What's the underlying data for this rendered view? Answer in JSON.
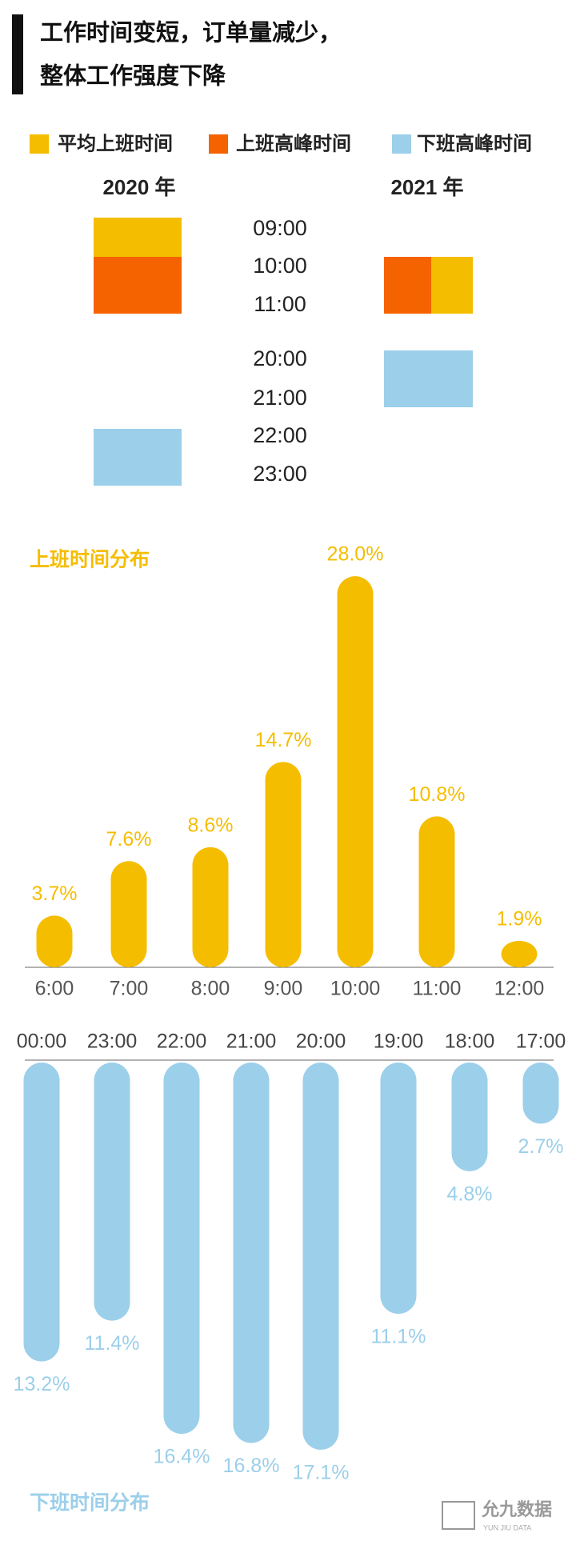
{
  "title": [
    "工作时间变短，订单量减少，",
    "整体工作强度下降"
  ],
  "legend": [
    {
      "name": "平均上班时间",
      "color": "#f5bd00"
    },
    {
      "name": "上班高峰时间",
      "color": "#f56200"
    },
    {
      "name": "下班高峰时间",
      "color": "#9ccfea"
    }
  ],
  "timeline": {
    "years": [
      "2020 年",
      "2021 年"
    ],
    "times": [
      "09:00",
      "10:00",
      "11:00",
      "20:00",
      "21:00",
      "22:00",
      "23:00"
    ]
  },
  "footer": [
    "允九数据",
    "YUN JIU DATA"
  ],
  "chart_data": [
    {
      "type": "bar",
      "title": "上班时间分布",
      "color": "#f5bd00",
      "categories": [
        "6:00",
        "7:00",
        "8:00",
        "9:00",
        "10:00",
        "11:00",
        "12:00"
      ],
      "values": [
        3.7,
        7.6,
        8.6,
        14.7,
        28.0,
        10.8,
        1.9
      ],
      "value_labels": [
        "3.7%",
        "7.6%",
        "8.6%",
        "14.7%",
        "28.0%",
        "10.8%",
        "1.9%"
      ]
    },
    {
      "type": "bar",
      "title": "下班时间分布",
      "color": "#9ccfea",
      "categories": [
        "00:00",
        "23:00",
        "22:00",
        "21:00",
        "20:00",
        "19:00",
        "18:00",
        "17:00"
      ],
      "values": [
        13.2,
        11.4,
        16.4,
        16.8,
        17.1,
        11.1,
        4.8,
        2.7
      ],
      "value_labels": [
        "13.2%",
        "11.4%",
        "16.4%",
        "16.8%",
        "17.1%",
        "11.1%",
        "4.8%",
        "2.7%"
      ]
    }
  ]
}
